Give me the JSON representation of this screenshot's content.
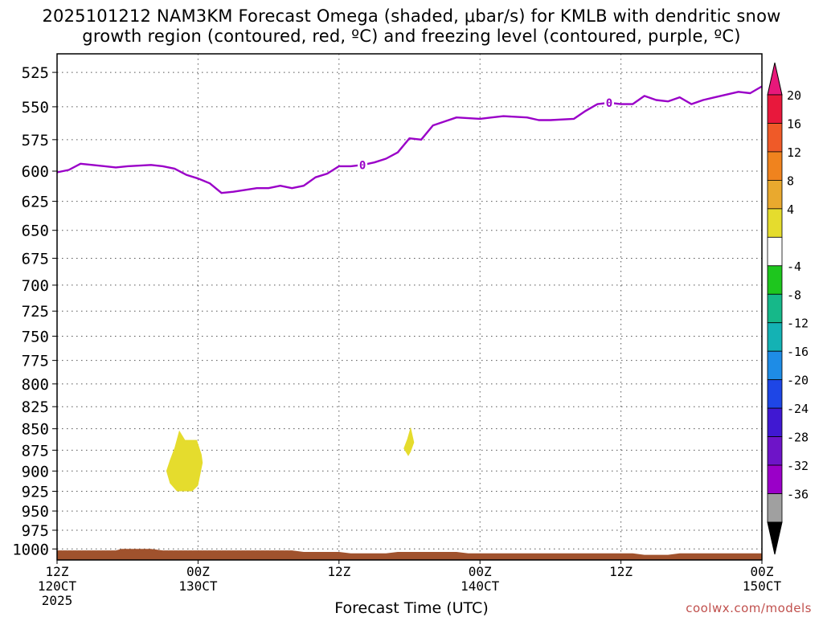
{
  "title": {
    "line1": "2025101212 NAM3KM Forecast Omega (shaded, μbar/s) for KMLB with dendritic snow",
    "line2": "growth region (contoured, red, ºC) and freezing level (contoured, purple, ºC)"
  },
  "credit": "coolwx.com/models",
  "chart_data": {
    "type": "heatmap",
    "xlabel": "Forecast Time (UTC)",
    "ylabel": "",
    "x_range_hours": [
      0,
      60
    ],
    "y_range_mb": [
      1015,
      512
    ],
    "y_ticks": [
      525,
      550,
      575,
      600,
      625,
      650,
      675,
      700,
      725,
      750,
      775,
      800,
      825,
      850,
      875,
      900,
      925,
      950,
      975,
      1000
    ],
    "x_ticks": [
      {
        "hour": 0,
        "line1": "12Z",
        "line2": "120CT",
        "line3": "2025"
      },
      {
        "hour": 12,
        "line1": "00Z",
        "line2": "130CT",
        "line3": ""
      },
      {
        "hour": 24,
        "line1": "12Z",
        "line2": "",
        "line3": ""
      },
      {
        "hour": 36,
        "line1": "00Z",
        "line2": "140CT",
        "line3": ""
      },
      {
        "hour": 48,
        "line1": "12Z",
        "line2": "",
        "line3": ""
      },
      {
        "hour": 60,
        "line1": "00Z",
        "line2": "150CT",
        "line3": ""
      }
    ],
    "grid": true,
    "freezing_level": {
      "color": "#9a00c8",
      "label": "0",
      "points": [
        [
          0,
          601
        ],
        [
          1,
          599
        ],
        [
          2,
          594
        ],
        [
          3,
          595
        ],
        [
          5,
          597
        ],
        [
          6,
          596
        ],
        [
          8,
          595
        ],
        [
          9,
          596
        ],
        [
          10,
          598
        ],
        [
          11,
          603
        ],
        [
          12,
          606
        ],
        [
          13,
          610
        ],
        [
          14,
          618
        ],
        [
          15,
          617
        ],
        [
          17,
          614
        ],
        [
          18,
          614
        ],
        [
          19,
          612
        ],
        [
          20,
          614
        ],
        [
          21,
          612
        ],
        [
          22,
          605
        ],
        [
          23,
          602
        ],
        [
          24,
          596
        ],
        [
          25,
          596
        ],
        [
          26,
          595
        ],
        [
          27,
          593
        ],
        [
          28,
          590
        ],
        [
          29,
          585
        ],
        [
          30,
          574
        ],
        [
          31,
          575
        ],
        [
          32,
          564
        ],
        [
          33,
          561
        ],
        [
          34,
          558
        ],
        [
          36,
          559
        ],
        [
          37,
          558
        ],
        [
          38,
          557
        ],
        [
          40,
          558
        ],
        [
          41,
          560
        ],
        [
          42,
          560
        ],
        [
          44,
          559
        ],
        [
          45,
          553
        ],
        [
          46,
          548
        ],
        [
          47,
          547
        ],
        [
          48,
          548
        ],
        [
          49,
          548
        ],
        [
          50,
          542
        ],
        [
          51,
          545
        ],
        [
          52,
          546
        ],
        [
          53,
          543
        ],
        [
          54,
          548
        ],
        [
          55,
          545
        ],
        [
          56,
          543
        ],
        [
          57,
          541
        ],
        [
          58,
          539
        ],
        [
          59,
          540
        ],
        [
          60,
          535
        ]
      ],
      "contour_labels_hours": [
        26,
        47
      ]
    },
    "omega_regions": [
      {
        "range": "4 to 8",
        "color": "#e5dc2d",
        "points": [
          [
            9.3,
            900
          ],
          [
            9.6,
            887
          ],
          [
            10.0,
            872
          ],
          [
            10.4,
            852
          ],
          [
            10.9,
            863
          ],
          [
            11.9,
            863
          ],
          [
            12.3,
            880
          ],
          [
            12.4,
            890
          ],
          [
            12.0,
            918
          ],
          [
            11.5,
            925
          ],
          [
            10.2,
            925
          ],
          [
            9.6,
            915
          ]
        ]
      },
      {
        "range": "4 to 8",
        "color": "#e5dc2d",
        "points": [
          [
            29.5,
            873
          ],
          [
            29.8,
            862
          ],
          [
            30.1,
            848
          ],
          [
            30.4,
            866
          ],
          [
            30.1,
            877
          ],
          [
            29.9,
            882
          ]
        ]
      }
    ],
    "terrain": {
      "color": "#a0522d",
      "points": [
        [
          0,
          1002
        ],
        [
          5,
          1002
        ],
        [
          5.5,
          1000
        ],
        [
          8,
          1000
        ],
        [
          9,
          1002
        ],
        [
          20,
          1002
        ],
        [
          21,
          1004
        ],
        [
          24,
          1004
        ],
        [
          25,
          1006
        ],
        [
          28,
          1006
        ],
        [
          29,
          1004
        ],
        [
          34,
          1004
        ],
        [
          35,
          1006
        ],
        [
          49,
          1006
        ],
        [
          50,
          1008
        ],
        [
          52,
          1008
        ],
        [
          53,
          1006
        ],
        [
          60,
          1006
        ]
      ]
    },
    "colorbar": {
      "tick_labels": [
        "20",
        "16",
        "12",
        "8",
        "4",
        "-4",
        "-8",
        "-12",
        "-16",
        "-20",
        "-24",
        "-28",
        "-32",
        "-36"
      ],
      "colors": [
        "#e8183c",
        "#ef5a28",
        "#f0831e",
        "#e9a92e",
        "#e5dc2d",
        "#ffffff",
        "#1ec61e",
        "#16b889",
        "#14b2b4",
        "#1e8ce6",
        "#1e46e6",
        "#4018d2",
        "#6e14c8",
        "#9a00c8",
        "#a0a0a0"
      ],
      "top_triangle_color": "#e8187a",
      "bottom_triangle_color": "#000000"
    }
  }
}
